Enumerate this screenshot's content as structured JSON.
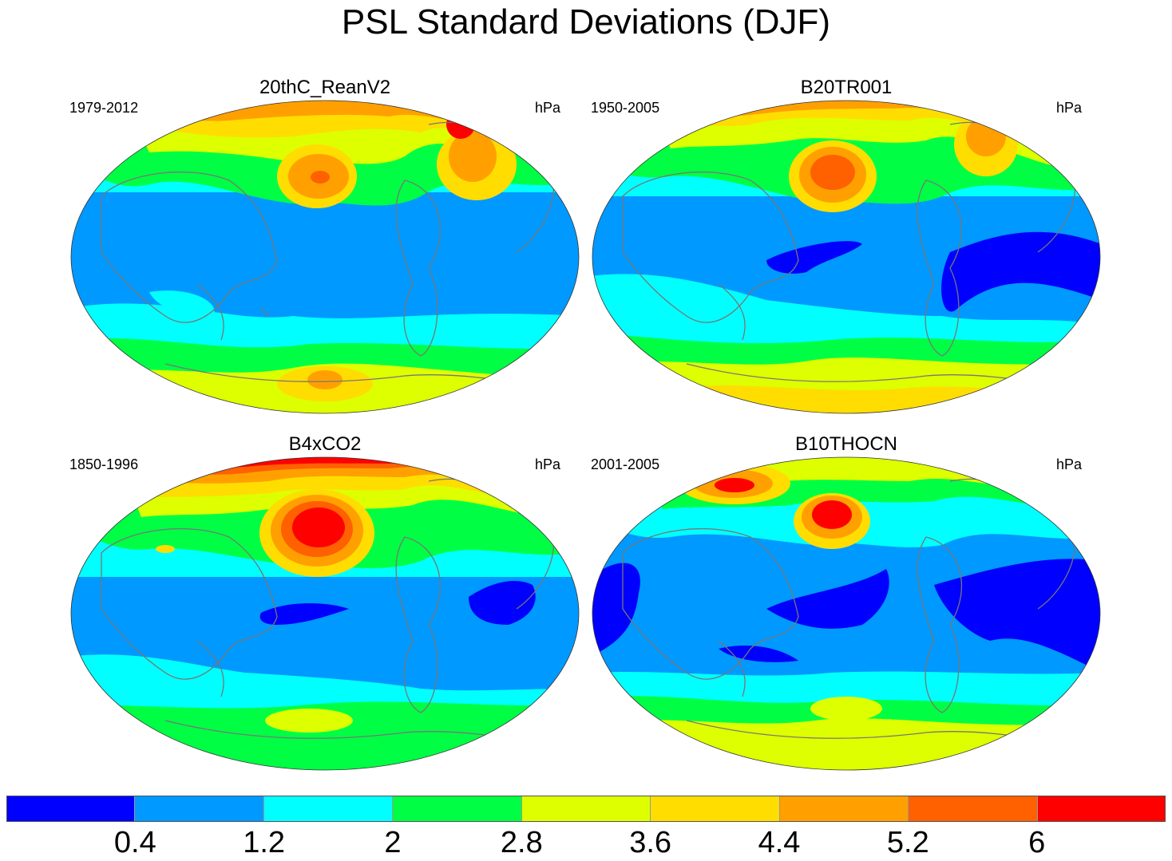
{
  "title": "PSL Standard Deviations (DJF)",
  "panels": [
    {
      "title": "20thC_ReanV2",
      "years": "1979-2012",
      "units": "hPa"
    },
    {
      "title": "B20TR001",
      "years": "1950-2005",
      "units": "hPa"
    },
    {
      "title": "B4xCO2",
      "years": "1850-1996",
      "units": "hPa"
    },
    {
      "title": "B10THOCN",
      "years": "2001-2005",
      "units": "hPa"
    }
  ],
  "colorbar": {
    "colors": [
      "#0000ff",
      "#0099ff",
      "#00ffff",
      "#00ff44",
      "#ddff00",
      "#ffdd00",
      "#ffa000",
      "#ff6000",
      "#ff0000"
    ],
    "labels": [
      "0.4",
      "1.2",
      "2",
      "2.8",
      "3.6",
      "4.4",
      "5.2",
      "6"
    ]
  }
}
